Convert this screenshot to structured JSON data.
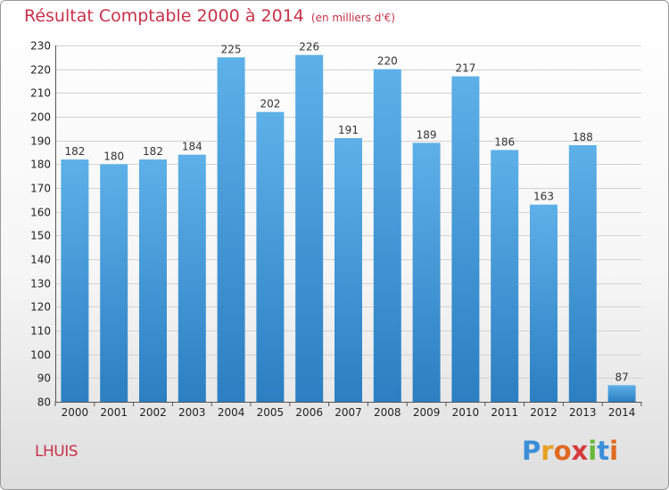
{
  "header": {
    "title": "Résultat Comptable 2000 à 2014",
    "subtitle": "(en milliers d'€)"
  },
  "footer": {
    "commune": "LHUIS",
    "logo": [
      "P",
      "r",
      "o",
      "x",
      "i",
      "t",
      "i"
    ]
  },
  "colors": {
    "accent": "#c8324a",
    "bar_light": "#5eb0e8",
    "bar_dark": "#2b7fc2",
    "logo_letters": [
      "#3b8ed8",
      "#e8a020",
      "#e06a20",
      "#d63a3a",
      "#68b83c",
      "#3b8ed8",
      "#e06a20"
    ]
  },
  "chart_data": {
    "type": "bar",
    "title": "Résultat Comptable 2000 à 2014",
    "subtitle": "(en milliers d'€)",
    "xlabel": "",
    "ylabel": "",
    "categories": [
      "2000",
      "2001",
      "2002",
      "2003",
      "2004",
      "2005",
      "2006",
      "2007",
      "2008",
      "2009",
      "2010",
      "2011",
      "2012",
      "2013",
      "2014"
    ],
    "values": [
      182,
      180,
      182,
      184,
      225,
      202,
      226,
      191,
      220,
      189,
      217,
      186,
      163,
      188,
      87
    ],
    "ylim": [
      80,
      230
    ],
    "yticks": [
      80,
      90,
      100,
      110,
      120,
      130,
      140,
      150,
      160,
      170,
      180,
      190,
      200,
      210,
      220,
      230
    ],
    "grid": true
  }
}
